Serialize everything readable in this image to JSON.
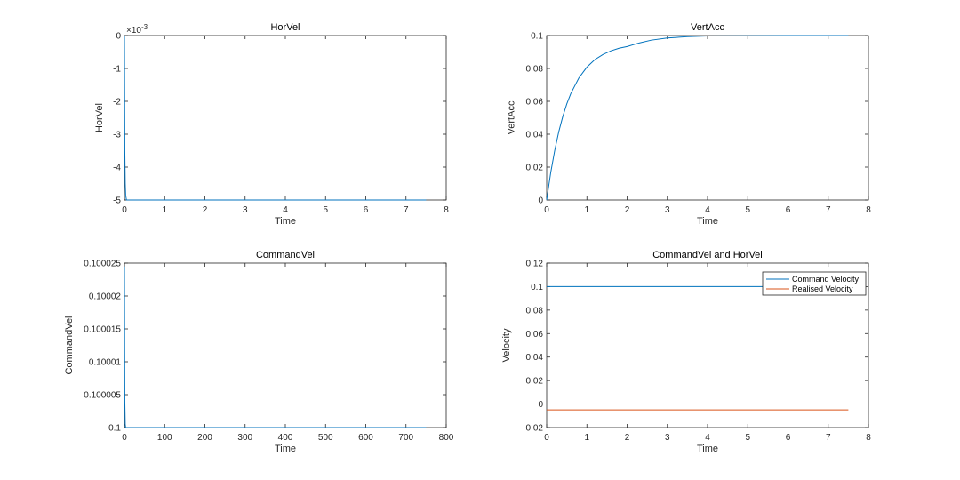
{
  "chart_data": [
    {
      "type": "line",
      "title": "HorVel",
      "xlabel": "Time",
      "ylabel": "HorVel",
      "xlim": [
        0,
        8
      ],
      "ylim": [
        -5,
        0
      ],
      "xticks": [
        "0",
        "1",
        "2",
        "3",
        "4",
        "5",
        "6",
        "7",
        "8"
      ],
      "yticks": [
        "-5",
        "-4",
        "-3",
        "-2",
        "-1",
        "0"
      ],
      "y_exponent": "×10-3",
      "grid": false,
      "series": [
        {
          "name": "",
          "color": "#0072BD",
          "x": [
            0,
            0.005,
            0.01,
            0.02,
            0.03,
            0.05,
            7.5
          ],
          "y": [
            0,
            -2.0,
            -3.5,
            -4.5,
            -4.85,
            -5.0,
            -5.0
          ]
        }
      ]
    },
    {
      "type": "line",
      "title": "VertAcc",
      "xlabel": "Time",
      "ylabel": "VertAcc",
      "xlim": [
        0,
        8
      ],
      "ylim": [
        0,
        0.1
      ],
      "xticks": [
        "0",
        "1",
        "2",
        "3",
        "4",
        "5",
        "6",
        "7",
        "8"
      ],
      "yticks": [
        "0",
        "0.02",
        "0.04",
        "0.06",
        "0.08",
        "0.1"
      ],
      "grid": false,
      "series": [
        {
          "name": "",
          "color": "#0072BD",
          "x": [
            0,
            0.1,
            0.2,
            0.3,
            0.4,
            0.5,
            0.6,
            0.8,
            1.0,
            1.2,
            1.4,
            1.6,
            1.8,
            2.0,
            2.3,
            2.6,
            3.0,
            3.5,
            4.0,
            5.0,
            6.0,
            7.0,
            7.5
          ],
          "y": [
            0,
            0.0165,
            0.0301,
            0.0414,
            0.0507,
            0.0584,
            0.0647,
            0.0742,
            0.0808,
            0.0854,
            0.0885,
            0.0907,
            0.0923,
            0.0933,
            0.0955,
            0.0972,
            0.0985,
            0.0993,
            0.0997,
            0.0999,
            0.1,
            0.1,
            0.1
          ]
        }
      ]
    },
    {
      "type": "line",
      "title": "CommandVel",
      "xlabel": "Time",
      "ylabel": "CommandVel",
      "xlim": [
        0,
        800
      ],
      "ylim": [
        0.1,
        0.100025
      ],
      "xticks": [
        "0",
        "100",
        "200",
        "300",
        "400",
        "500",
        "600",
        "700",
        "800"
      ],
      "yticks": [
        "0.1",
        "0.100005",
        "0.10001",
        "0.100015",
        "0.10002",
        "0.100025"
      ],
      "grid": false,
      "series": [
        {
          "name": "",
          "color": "#0072BD",
          "x": [
            0,
            0.5,
            1,
            2,
            3,
            750
          ],
          "y": [
            0.1000245,
            0.100012,
            0.100004,
            0.1000005,
            0.1,
            0.1
          ]
        }
      ]
    },
    {
      "type": "line",
      "title": "CommandVel and HorVel",
      "xlabel": "Time",
      "ylabel": "Velocity",
      "xlim": [
        0,
        8
      ],
      "ylim": [
        -0.02,
        0.12
      ],
      "xticks": [
        "0",
        "1",
        "2",
        "3",
        "4",
        "5",
        "6",
        "7",
        "8"
      ],
      "yticks": [
        "-0.02",
        "0",
        "0.02",
        "0.04",
        "0.06",
        "0.08",
        "0.1",
        "0.12"
      ],
      "grid": false,
      "legend": "top-right",
      "series": [
        {
          "name": "Command Velocity",
          "color": "#0072BD",
          "x": [
            0,
            7.5
          ],
          "y": [
            0.1,
            0.1
          ]
        },
        {
          "name": "Realised Velocity",
          "color": "#D95319",
          "x": [
            0,
            7.5
          ],
          "y": [
            -0.005,
            -0.005
          ]
        }
      ]
    }
  ]
}
